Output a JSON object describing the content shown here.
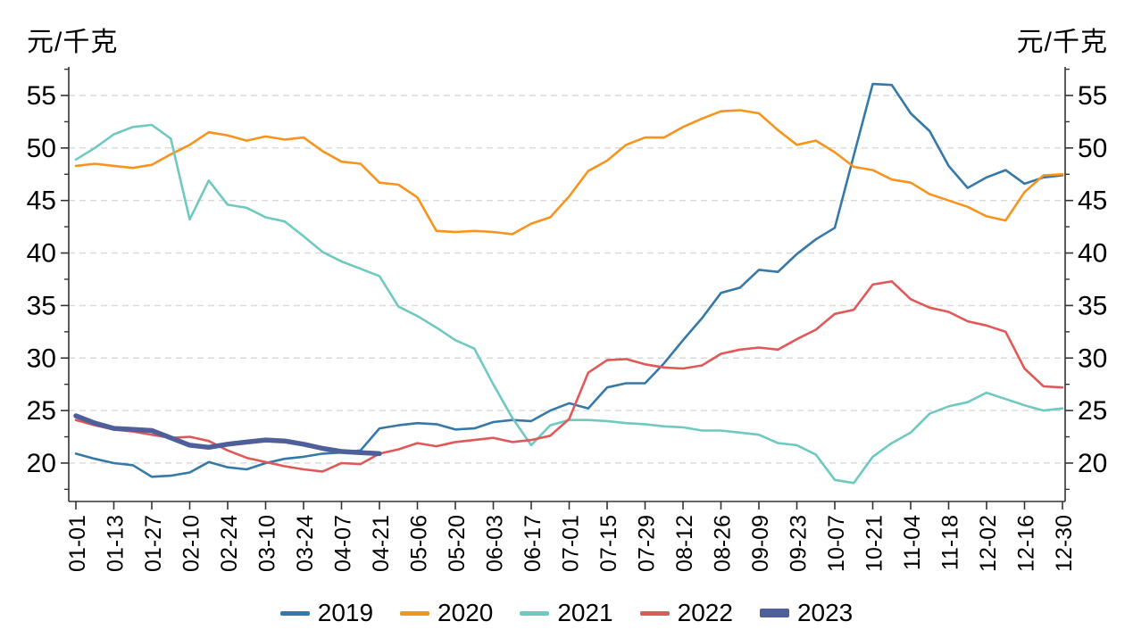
{
  "unit_label_left": "元/千克",
  "unit_label_right": "元/千克",
  "chart_data": {
    "type": "line",
    "title": "",
    "ylabel_left": "元/千克",
    "ylabel_right": "元/千克",
    "grid": "horizontal-dashed",
    "legend_position": "bottom-center",
    "ylim": [
      16.3,
      57.7
    ],
    "yticks": [
      20,
      25,
      30,
      35,
      40,
      45,
      50,
      55
    ],
    "minor_ytick_values": [
      17.5,
      22.5,
      27.5,
      32.5,
      37.5,
      42.5,
      47.5,
      52.5,
      57.5
    ],
    "x_labels": [
      "01-01",
      "01-13",
      "01-27",
      "02-10",
      "02-24",
      "03-10",
      "03-24",
      "04-07",
      "04-21",
      "05-06",
      "05-20",
      "06-03",
      "06-17",
      "07-01",
      "07-15",
      "07-29",
      "08-12",
      "08-26",
      "09-09",
      "09-23",
      "10-07",
      "10-21",
      "11-04",
      "11-18",
      "12-02",
      "12-16",
      "12-30"
    ],
    "points_per_label_gap": 2,
    "series": [
      {
        "name": "2019",
        "color": "#3579a8",
        "line_width": 2.6,
        "values": [
          20.9,
          20.4,
          20.0,
          19.8,
          18.7,
          18.8,
          19.1,
          20.1,
          19.6,
          19.4,
          20.0,
          20.4,
          20.6,
          20.9,
          21.0,
          21.2,
          23.3,
          23.6,
          23.8,
          23.7,
          23.2,
          23.3,
          23.9,
          24.1,
          24.0,
          25.0,
          25.7,
          25.2,
          27.2,
          27.6,
          27.6,
          29.5,
          31.7,
          33.8,
          36.2,
          36.7,
          38.4,
          38.2,
          39.9,
          41.3,
          42.4,
          49.3,
          56.1,
          56.0,
          53.3,
          51.6,
          48.3,
          46.2,
          47.2,
          47.9,
          46.6,
          47.2,
          47.4
        ]
      },
      {
        "name": "2020",
        "color": "#f7941e",
        "line_width": 2.6,
        "values": [
          48.3,
          48.5,
          48.3,
          48.1,
          48.4,
          49.4,
          50.3,
          51.5,
          51.2,
          50.7,
          51.1,
          50.8,
          51.0,
          49.7,
          48.7,
          48.5,
          46.7,
          46.5,
          45.3,
          42.1,
          42.0,
          42.1,
          42.0,
          41.8,
          42.8,
          43.4,
          45.4,
          47.8,
          48.8,
          50.3,
          51.0,
          51.0,
          52.0,
          52.8,
          53.5,
          53.6,
          53.3,
          51.7,
          50.3,
          50.7,
          49.6,
          48.2,
          47.9,
          47.0,
          46.7,
          45.6,
          45.0,
          44.4,
          43.5,
          43.1,
          45.8,
          47.4,
          47.5
        ]
      },
      {
        "name": "2021",
        "color": "#6fc9c1",
        "line_width": 2.6,
        "values": [
          48.9,
          50.0,
          51.3,
          52.0,
          52.2,
          50.9,
          43.2,
          46.9,
          44.6,
          44.3,
          43.4,
          43.0,
          41.6,
          40.1,
          39.2,
          38.5,
          37.8,
          34.9,
          34.0,
          32.9,
          31.7,
          30.9,
          27.5,
          24.3,
          21.7,
          23.6,
          24.1,
          24.1,
          24.0,
          23.8,
          23.7,
          23.5,
          23.4,
          23.1,
          23.1,
          22.9,
          22.7,
          21.9,
          21.7,
          20.8,
          18.4,
          18.1,
          20.6,
          21.9,
          22.9,
          24.7,
          25.4,
          25.8,
          26.7,
          26.1,
          25.5,
          25.0,
          25.2
        ]
      },
      {
        "name": "2022",
        "color": "#e05858",
        "line_width": 2.6,
        "values": [
          24.1,
          23.6,
          23.2,
          23.0,
          22.7,
          22.4,
          22.5,
          22.1,
          21.2,
          20.5,
          20.1,
          19.7,
          19.4,
          19.2,
          20.0,
          19.9,
          20.9,
          21.3,
          21.9,
          21.6,
          22.0,
          22.2,
          22.4,
          22.0,
          22.2,
          22.6,
          24.2,
          28.6,
          29.8,
          29.9,
          29.4,
          29.1,
          29.0,
          29.3,
          30.4,
          30.8,
          31.0,
          30.8,
          31.8,
          32.7,
          34.2,
          34.6,
          37.0,
          37.3,
          35.6,
          34.8,
          34.4,
          33.5,
          33.1,
          32.5,
          29.0,
          27.3,
          27.2
        ]
      },
      {
        "name": "2023",
        "color": "#4e5f9a",
        "line_width": 5.5,
        "values": [
          24.5,
          23.8,
          23.3,
          23.2,
          23.1,
          22.4,
          21.7,
          21.5,
          21.8,
          22.0,
          22.2,
          22.1,
          21.8,
          21.4,
          21.1,
          21.0,
          20.9
        ]
      }
    ],
    "legend": [
      "2019",
      "2020",
      "2021",
      "2022",
      "2023"
    ]
  },
  "style": {
    "grid_color": "#d9d9d9",
    "axis_color": "#333333",
    "tick_label_color": "#000000"
  }
}
